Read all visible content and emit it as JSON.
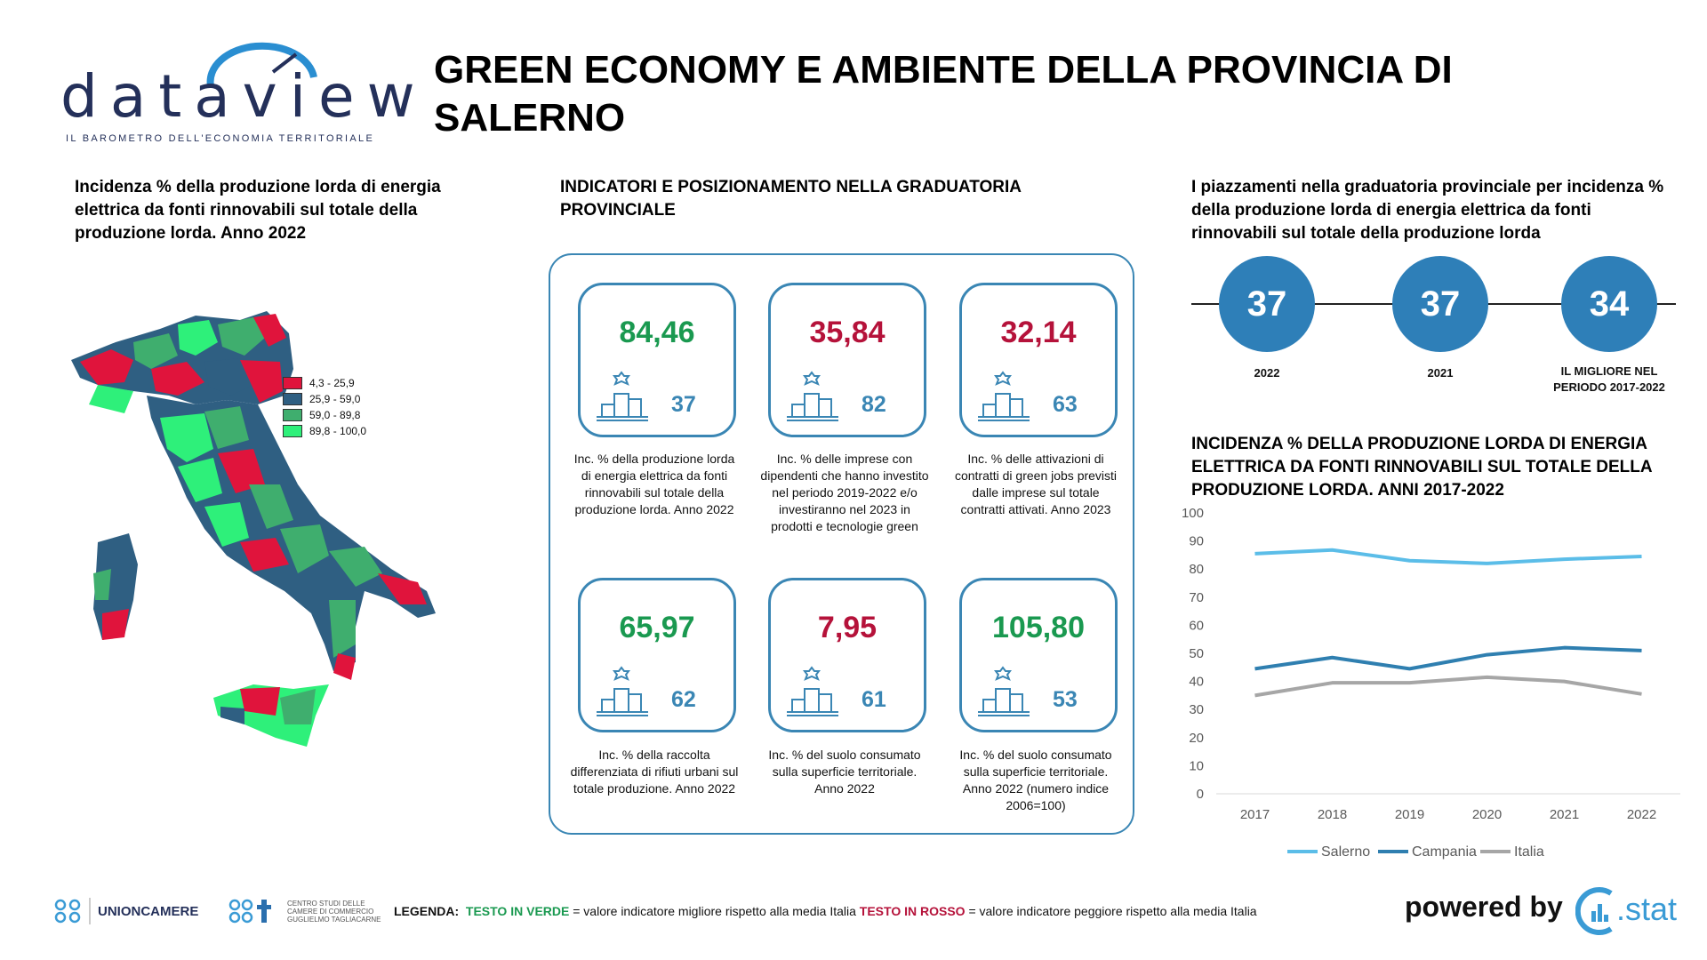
{
  "header": {
    "logo_text": "dataview",
    "logo_subtitle": "IL BAROMETRO DELL'ECONOMIA TERRITORIALE",
    "title": "GREEN ECONOMY E AMBIENTE DELLA PROVINCIA DI SALERNO"
  },
  "map_section": {
    "title": "Incidenza % della produzione lorda di energia elettrica da fonti rinnovabili sul totale della produzione lorda. Anno 2022",
    "legend": [
      {
        "label": "4,3 - 25,9",
        "color": "#e0143c"
      },
      {
        "label": "25,9 - 59,0",
        "color": "#2f5f82"
      },
      {
        "label": "59,0 - 89,8",
        "color": "#3fae6e"
      },
      {
        "label": "89,8 - 100,0",
        "color": "#2ef07a"
      }
    ]
  },
  "indicators": {
    "title": "INDICATORI E POSIZIONAMENTO NELLA GRADUATORIA PROVINCIALE",
    "cards": [
      {
        "value": "84,46",
        "rank": "37",
        "tone": "green",
        "desc": "Inc. % della produzione lorda di energia elettrica da fonti rinnovabili sul totale della produzione lorda. Anno 2022"
      },
      {
        "value": "35,84",
        "rank": "82",
        "tone": "red",
        "desc": "Inc. % delle imprese con dipendenti che hanno investito nel periodo 2019-2022 e/o investiranno nel 2023 in prodotti e tecnologie green"
      },
      {
        "value": "32,14",
        "rank": "63",
        "tone": "red",
        "desc": "Inc. % delle attivazioni di contratti di green jobs previsti dalle imprese sul totale contratti attivati. Anno 2023"
      },
      {
        "value": "65,97",
        "rank": "62",
        "tone": "green",
        "desc": "Inc. % della raccolta differenziata di rifiuti urbani sul totale produzione. Anno 2022"
      },
      {
        "value": "7,95",
        "rank": "61",
        "tone": "red",
        "desc": "Inc. % del suolo consumato sulla superficie territoriale. Anno 2022"
      },
      {
        "value": "105,80",
        "rank": "53",
        "tone": "green",
        "desc": "Inc. % del suolo consumato sulla superficie territoriale. Anno 2022 (numero indice 2006=100)"
      }
    ]
  },
  "ranking": {
    "title": "I piazzamenti nella graduatoria provinciale per incidenza % della produzione lorda di energia elettrica da fonti rinnovabili sul totale della produzione lorda",
    "items": [
      {
        "value": "37",
        "label": "2022"
      },
      {
        "value": "37",
        "label": "2021"
      },
      {
        "value": "34",
        "label": "IL MIGLIORE NEL PERIODO 2017-2022"
      }
    ]
  },
  "chart_data": {
    "type": "line",
    "title": "INCIDENZA % DELLA PRODUZIONE LORDA DI ENERGIA ELETTRICA DA FONTI RINNOVABILI SUL TOTALE DELLA PRODUZIONE LORDA. ANNI 2017-2022",
    "x": [
      "2017",
      "2018",
      "2019",
      "2020",
      "2021",
      "2022"
    ],
    "ylim": [
      0,
      100
    ],
    "yticks": [
      0,
      10,
      20,
      30,
      40,
      50,
      60,
      70,
      80,
      90,
      100
    ],
    "grid": false,
    "legend_position": "bottom",
    "series": [
      {
        "name": "Salerno",
        "color": "#5bbde8",
        "values": [
          85.5,
          86.8,
          83.0,
          82.0,
          83.5,
          84.5
        ]
      },
      {
        "name": "Campania",
        "color": "#2f7fb0",
        "values": [
          44.5,
          48.5,
          44.5,
          49.5,
          52.0,
          51.0
        ]
      },
      {
        "name": "Italia",
        "color": "#a6a6a6",
        "values": [
          35.0,
          39.5,
          39.5,
          41.5,
          40.0,
          35.5
        ]
      }
    ]
  },
  "footer": {
    "org1": "UNIONCAMERE",
    "org2_line1": "CENTRO STUDI DELLE",
    "org2_line2": "CAMERE DI COMMERCIO",
    "org2_line3": "GUGLIELMO TAGLIACARNE",
    "legend_prefix": "LEGENDA:",
    "legend_green": "TESTO IN VERDE",
    "legend_green_text": "= valore indicatore migliore rispetto alla media Italia",
    "legend_red": "TESTO IN ROSSO",
    "legend_red_text": "= valore indicatore peggiore rispetto alla media Italia",
    "powered_by": "powered by",
    "brand": ".stat"
  }
}
